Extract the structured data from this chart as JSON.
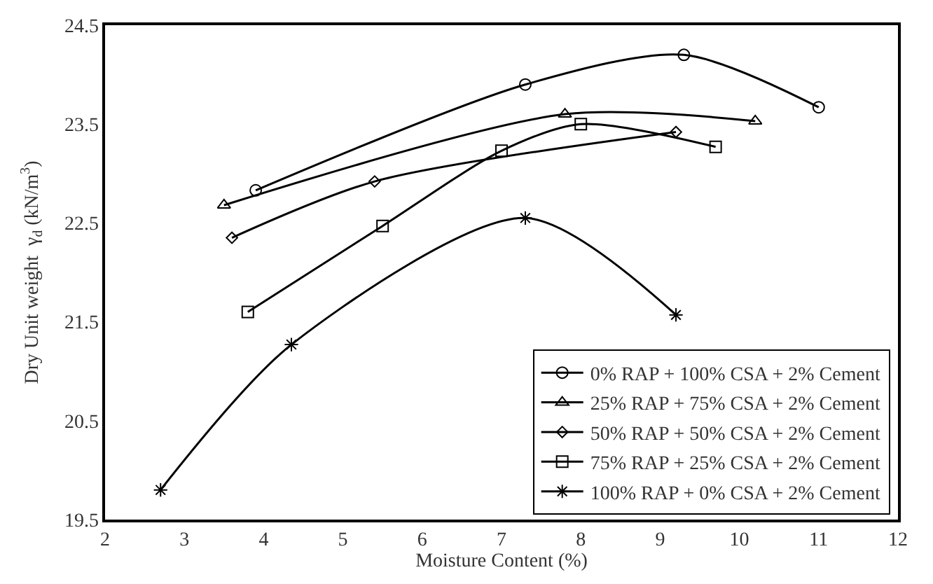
{
  "chart_data": {
    "type": "line",
    "xlabel": "Moisture Content (%)",
    "ylabel": "Dry Unit weight  γ$_{d}$ (kN/m$^{3}$)",
    "xlim": [
      2,
      12
    ],
    "xticks": [
      2,
      3,
      4,
      5,
      6,
      7,
      8,
      9,
      10,
      11,
      12
    ],
    "ylim": [
      19.5,
      24.5
    ],
    "yticks": [
      19.5,
      20.5,
      21.5,
      22.5,
      23.5,
      24.5
    ],
    "legend": "bottom right",
    "series": [
      {
        "name": "0% RAP + 100% CSA + 2% Cement",
        "color": "#000000",
        "marker": "circle",
        "x": [
          3.9,
          7.3,
          9.3,
          11
        ],
        "values": [
          22.83,
          23.9,
          24.2,
          23.67
        ]
      },
      {
        "name": "25% RAP + 75% CSA + 2% Cement",
        "color": "#000000",
        "marker": "triangle",
        "x": [
          3.5,
          7.8,
          10.2
        ],
        "values": [
          22.68,
          23.6,
          23.53
        ]
      },
      {
        "name": "50% RAP + 50% CSA + 2% Cement",
        "color": "#000000",
        "marker": "diamond",
        "x": [
          3.6,
          5.4,
          9.2
        ],
        "values": [
          22.35,
          22.92,
          23.42
        ]
      },
      {
        "name": "75% RAP + 25% CSA + 2% Cement",
        "color": "#000000",
        "marker": "square",
        "x": [
          3.8,
          5.5,
          7,
          8,
          9.7
        ],
        "values": [
          21.6,
          22.47,
          23.23,
          23.5,
          23.27
        ]
      },
      {
        "name": "100% RAP + 0% CSA + 2% Cement",
        "color": "#000000",
        "marker": "cross",
        "x": [
          2.7,
          4.35,
          7.3,
          9.2
        ],
        "values": [
          19.8,
          21.27,
          22.55,
          21.57
        ]
      }
    ]
  }
}
